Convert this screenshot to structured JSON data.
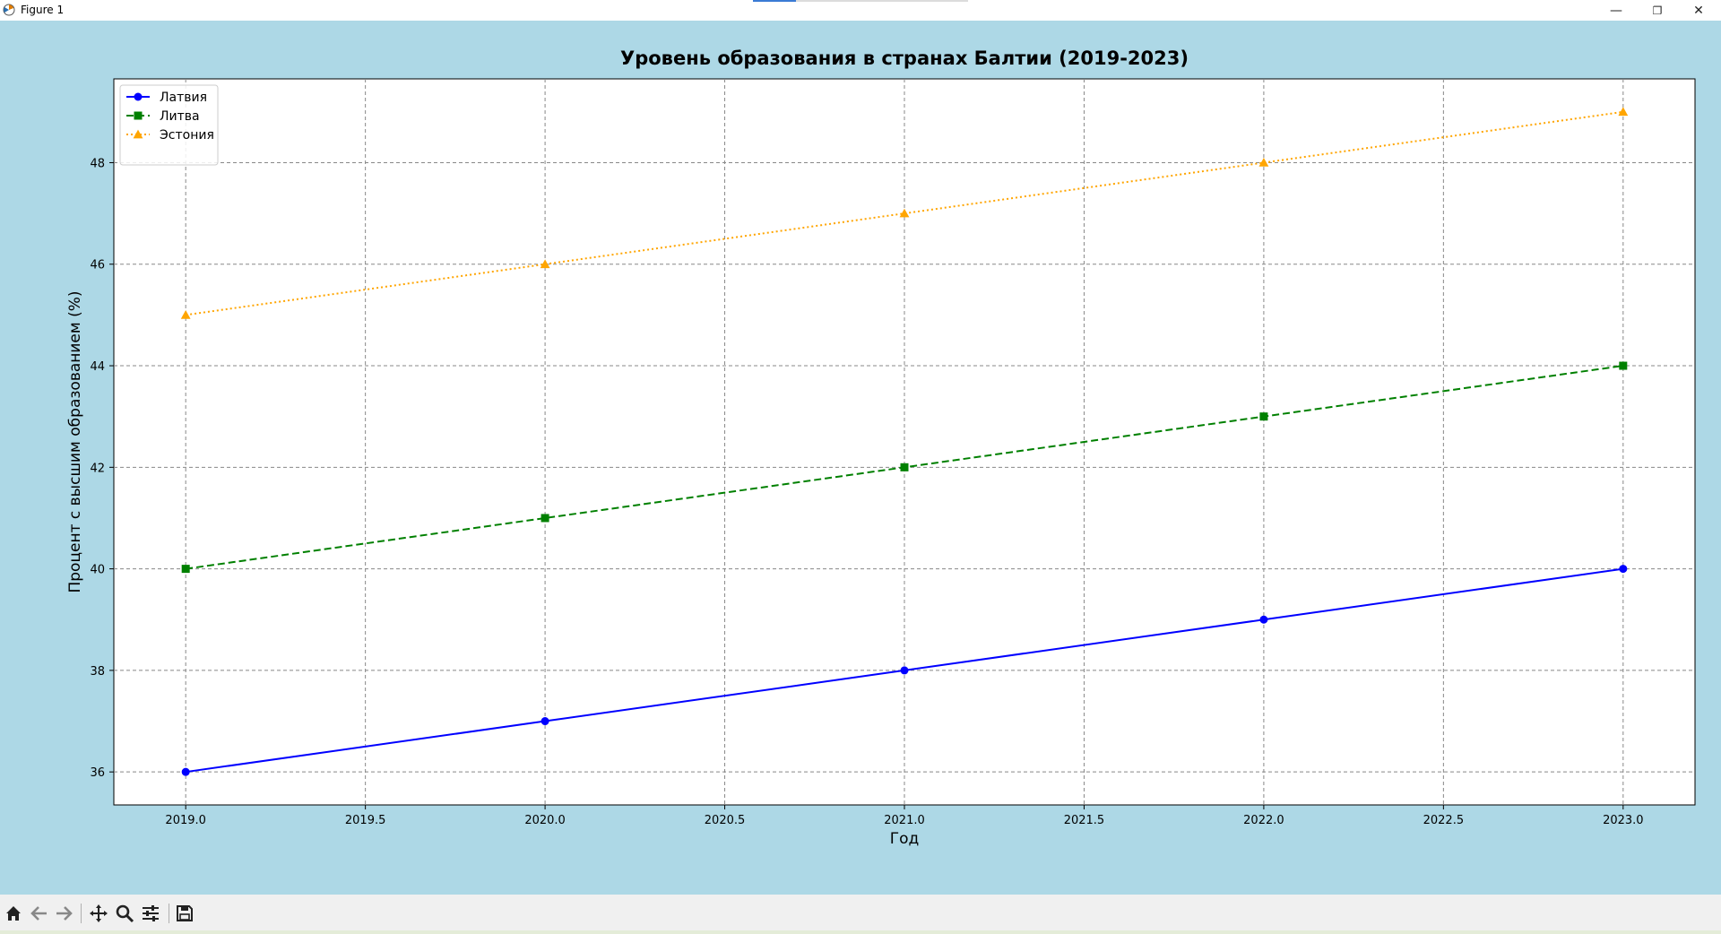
{
  "window": {
    "title": "Figure 1",
    "minimize_glyph": "—",
    "maximize_glyph": "❐",
    "close_glyph": "✕"
  },
  "toolbar": {
    "items": [
      "home-icon",
      "back-icon",
      "forward-icon",
      "pan-icon",
      "zoom-icon",
      "configure-icon",
      "save-icon"
    ]
  },
  "colors": {
    "figure_bg": "#add8e6",
    "axes_bg": "#ffffff",
    "series_latvia": "#0000ff",
    "series_lithuania": "#008000",
    "series_estonia": "#ffa500"
  },
  "chart_data": {
    "type": "line",
    "title": "Уровень образования в странах Балтии (2019-2023)",
    "xlabel": "Год",
    "ylabel": "Процент с высшим образованием (%)",
    "xlim": [
      2018.8,
      2023.2
    ],
    "ylim": [
      35.35,
      49.65
    ],
    "xticks": [
      "2019.0",
      "2019.5",
      "2020.0",
      "2020.5",
      "2021.0",
      "2021.5",
      "2022.0",
      "2022.5",
      "2023.0"
    ],
    "yticks": [
      "36",
      "38",
      "40",
      "42",
      "44",
      "46",
      "48"
    ],
    "grid": true,
    "legend_position": "top-left",
    "x": [
      2019,
      2020,
      2021,
      2022,
      2023
    ],
    "series": [
      {
        "name": "Латвия",
        "values": [
          36,
          37,
          38,
          39,
          40
        ],
        "color": "#0000ff",
        "linestyle": "solid",
        "marker": "circle"
      },
      {
        "name": "Литва",
        "values": [
          40,
          41,
          42,
          43,
          44
        ],
        "color": "#008000",
        "linestyle": "dashed",
        "marker": "square"
      },
      {
        "name": "Эстония",
        "values": [
          45,
          46,
          47,
          48,
          49
        ],
        "color": "#ffa500",
        "linestyle": "dotted",
        "marker": "triangle"
      }
    ]
  }
}
